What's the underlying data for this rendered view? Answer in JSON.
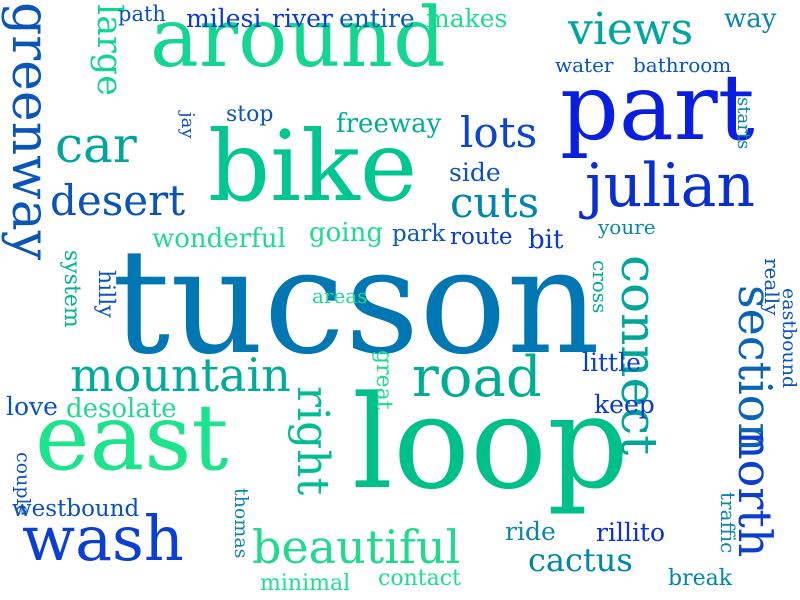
{
  "words": [
    {
      "text": "tucson",
      "color": "#0077b3"
    },
    {
      "text": "loop",
      "color": "#00c08a"
    },
    {
      "text": "bike",
      "color": "#00c692"
    },
    {
      "text": "around",
      "color": "#14d690"
    },
    {
      "text": "part",
      "color": "#0a1ee0"
    },
    {
      "text": "east",
      "color": "#1de38d"
    },
    {
      "text": "julian",
      "color": "#0a2fd0"
    },
    {
      "text": "connect",
      "color": "#00a69a"
    },
    {
      "text": "greenway",
      "color": "#0a56b8"
    },
    {
      "text": "road",
      "color": "#00ad93"
    },
    {
      "text": "wash",
      "color": "#0a3fd2"
    },
    {
      "text": "mountain",
      "color": "#00ab9a"
    },
    {
      "text": "beautiful",
      "color": "#22da8f"
    },
    {
      "text": "section",
      "color": "#0a63b4"
    },
    {
      "text": "north",
      "color": "#0a3ecf"
    },
    {
      "text": "right",
      "color": "#00bd93"
    },
    {
      "text": "car",
      "color": "#00a69e"
    },
    {
      "text": "desert",
      "color": "#0a53bd"
    },
    {
      "text": "cuts",
      "color": "#0086ad"
    },
    {
      "text": "views",
      "color": "#00a59f"
    },
    {
      "text": "lots",
      "color": "#0a45cb"
    },
    {
      "text": "large",
      "color": "#11d691"
    },
    {
      "text": "cactus",
      "color": "#0086a9"
    },
    {
      "text": "little",
      "color": "#0a3fd0"
    },
    {
      "text": "keep",
      "color": "#0a39cf"
    },
    {
      "text": "desolate",
      "color": "#22d990"
    },
    {
      "text": "love",
      "color": "#0a52bf"
    },
    {
      "text": "couple",
      "color": "#0a52bf"
    },
    {
      "text": "westbound",
      "color": "#0a51c1"
    },
    {
      "text": "great",
      "color": "#1ddc8e"
    },
    {
      "text": "thomas",
      "color": "#0a86ad"
    },
    {
      "text": "minimal",
      "color": "#1de08d"
    },
    {
      "text": "contact",
      "color": "#1de08d"
    },
    {
      "text": "ride",
      "color": "#0a86ab"
    },
    {
      "text": "rillito",
      "color": "#0a2fd2"
    },
    {
      "text": "break",
      "color": "#0086ab"
    },
    {
      "text": "traffic",
      "color": "#0a86ab"
    },
    {
      "text": "really",
      "color": "#0a53bd"
    },
    {
      "text": "eastbound",
      "color": "#0a53bd"
    },
    {
      "text": "cross",
      "color": "#00ab9a"
    },
    {
      "text": "areas",
      "color": "#1ddc8e"
    },
    {
      "text": "system",
      "color": "#00b392"
    },
    {
      "text": "hilly",
      "color": "#0a53bd"
    },
    {
      "text": "wonderful",
      "color": "#1ddc8e"
    },
    {
      "text": "going",
      "color": "#1ddc8e"
    },
    {
      "text": "park",
      "color": "#0a59bb"
    },
    {
      "text": "route",
      "color": "#0a39cf"
    },
    {
      "text": "bit",
      "color": "#0a39cf"
    },
    {
      "text": "youre",
      "color": "#0a86ab"
    },
    {
      "text": "side",
      "color": "#0a53bd"
    },
    {
      "text": "freeway",
      "color": "#00ab9a"
    },
    {
      "text": "stop",
      "color": "#0a53bd"
    },
    {
      "text": "jay",
      "color": "#0a53bd"
    },
    {
      "text": "starts",
      "color": "#0a86ab"
    },
    {
      "text": "path",
      "color": "#0a53bd"
    },
    {
      "text": "milesi",
      "color": "#0a39cf"
    },
    {
      "text": "river",
      "color": "#0a39cf"
    },
    {
      "text": "entire",
      "color": "#0a59bb"
    },
    {
      "text": "makes",
      "color": "#1ddc8e"
    },
    {
      "text": "way",
      "color": "#0a86ab"
    },
    {
      "text": "water",
      "color": "#0a53bd"
    },
    {
      "text": "bathroom",
      "color": "#0a53bd"
    }
  ]
}
